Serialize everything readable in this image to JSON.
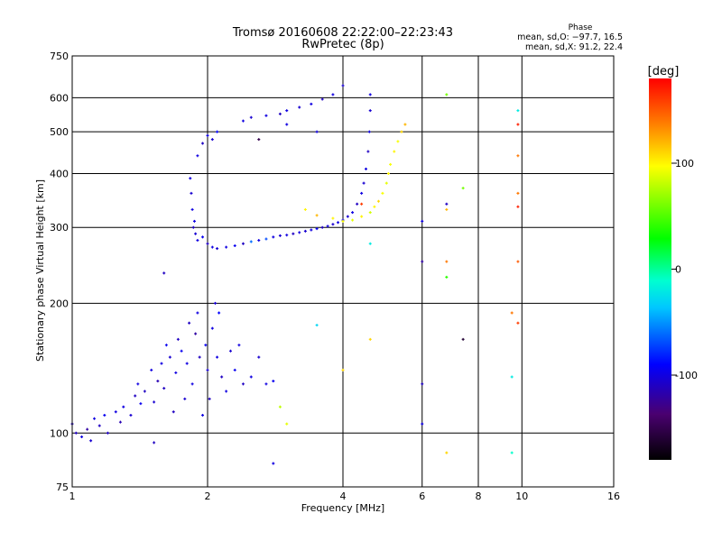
{
  "chart_data": {
    "type": "scatter",
    "title": "Tromsø 20160608 22:22:00–22:23:43",
    "subtitle": "RwPretec (8p)",
    "xlabel": "Frequency [MHz]",
    "ylabel": "Stationary phase Virtual Height [km]",
    "xscale": "log",
    "yscale": "log",
    "xlim": [
      1,
      16
    ],
    "ylim": [
      75,
      750
    ],
    "xticks": [
      1,
      2,
      4,
      6,
      8,
      10,
      16
    ],
    "yticks": [
      75,
      100,
      200,
      300,
      400,
      500,
      600,
      750
    ],
    "xgrid": [
      2,
      4,
      6,
      8,
      10
    ],
    "ygrid": [
      100,
      200,
      300,
      400,
      500,
      600
    ],
    "colorbar": {
      "label": "[deg]",
      "range": [
        -180,
        180
      ],
      "ticks": [
        100,
        0,
        -100
      ]
    },
    "stats": {
      "title": "Phase",
      "o_line": "mean, sd,O:  −97.7, 16.5",
      "x_line": "mean, sd,X:  91.2, 22.4"
    },
    "points": [
      [
        1.0,
        105,
        -110
      ],
      [
        1.02,
        100,
        -110
      ],
      [
        1.05,
        98,
        -100
      ],
      [
        1.08,
        102,
        -120
      ],
      [
        1.1,
        96,
        -105
      ],
      [
        1.12,
        108,
        -100
      ],
      [
        1.15,
        104,
        -110
      ],
      [
        1.18,
        110,
        -95
      ],
      [
        1.2,
        100,
        -110
      ],
      [
        1.25,
        112,
        -100
      ],
      [
        1.28,
        106,
        -115
      ],
      [
        1.3,
        115,
        -100
      ],
      [
        1.35,
        110,
        -105
      ],
      [
        1.38,
        122,
        -110
      ],
      [
        1.4,
        130,
        -100
      ],
      [
        1.42,
        117,
        -95
      ],
      [
        1.45,
        125,
        -110
      ],
      [
        1.5,
        140,
        -100
      ],
      [
        1.52,
        118,
        -105
      ],
      [
        1.55,
        132,
        -115
      ],
      [
        1.58,
        145,
        -100
      ],
      [
        1.6,
        127,
        -110
      ],
      [
        1.62,
        160,
        -95
      ],
      [
        1.65,
        150,
        -105
      ],
      [
        1.68,
        112,
        -110
      ],
      [
        1.7,
        138,
        -100
      ],
      [
        1.72,
        165,
        -110
      ],
      [
        1.75,
        155,
        -95
      ],
      [
        1.78,
        120,
        -105
      ],
      [
        1.8,
        145,
        -100
      ],
      [
        1.82,
        180,
        -110
      ],
      [
        1.85,
        130,
        -100
      ],
      [
        1.88,
        170,
        -120
      ],
      [
        1.9,
        190,
        -100
      ],
      [
        1.92,
        150,
        -110
      ],
      [
        1.95,
        110,
        -100
      ],
      [
        1.98,
        160,
        -95
      ],
      [
        2.0,
        140,
        -105
      ],
      [
        2.02,
        120,
        -110
      ],
      [
        2.05,
        175,
        -100
      ],
      [
        2.08,
        200,
        -105
      ],
      [
        2.1,
        150,
        -100
      ],
      [
        2.12,
        190,
        -90
      ],
      [
        2.15,
        135,
        -110
      ],
      [
        2.2,
        125,
        -100
      ],
      [
        2.25,
        155,
        -105
      ],
      [
        2.3,
        140,
        -95
      ],
      [
        2.35,
        160,
        -100
      ],
      [
        2.4,
        130,
        -110
      ],
      [
        2.5,
        135,
        -100
      ],
      [
        2.6,
        150,
        -105
      ],
      [
        2.7,
        130,
        -100
      ],
      [
        2.8,
        132,
        -95
      ],
      [
        1.52,
        95,
        -110
      ],
      [
        1.6,
        235,
        -110
      ],
      [
        2.8,
        85,
        -100
      ],
      [
        2.9,
        115,
        80
      ],
      [
        3.0,
        105,
        90
      ],
      [
        1.83,
        390,
        -100
      ],
      [
        1.84,
        360,
        -105
      ],
      [
        1.85,
        330,
        -100
      ],
      [
        1.86,
        300,
        -110
      ],
      [
        1.87,
        310,
        -100
      ],
      [
        1.88,
        290,
        -105
      ],
      [
        1.9,
        280,
        -100
      ],
      [
        1.95,
        285,
        -95
      ],
      [
        2.0,
        275,
        -110
      ],
      [
        2.05,
        270,
        -100
      ],
      [
        2.1,
        268,
        -105
      ],
      [
        2.2,
        270,
        -100
      ],
      [
        2.3,
        272,
        -95
      ],
      [
        2.4,
        275,
        -110
      ],
      [
        2.5,
        278,
        -60
      ],
      [
        2.6,
        280,
        -100
      ],
      [
        2.7,
        282,
        -70
      ],
      [
        2.8,
        285,
        -100
      ],
      [
        2.9,
        287,
        -105
      ],
      [
        3.0,
        288,
        -100
      ],
      [
        3.1,
        290,
        -110
      ],
      [
        3.2,
        292,
        -100
      ],
      [
        3.3,
        294,
        -105
      ],
      [
        3.4,
        296,
        -100
      ],
      [
        3.5,
        298,
        -95
      ],
      [
        3.6,
        300,
        -110
      ],
      [
        3.7,
        302,
        -100
      ],
      [
        3.8,
        305,
        -105
      ],
      [
        3.9,
        308,
        -100
      ],
      [
        4.0,
        312,
        -100
      ],
      [
        4.1,
        318,
        -105
      ],
      [
        4.2,
        325,
        -100
      ],
      [
        4.3,
        340,
        -110
      ],
      [
        4.4,
        360,
        -100
      ],
      [
        4.45,
        380,
        -105
      ],
      [
        4.5,
        410,
        -100
      ],
      [
        4.55,
        450,
        -110
      ],
      [
        4.58,
        500,
        -100
      ],
      [
        4.6,
        560,
        -105
      ],
      [
        4.6,
        610,
        -100
      ],
      [
        3.3,
        330,
        100
      ],
      [
        3.5,
        320,
        120
      ],
      [
        3.8,
        315,
        100
      ],
      [
        4.0,
        310,
        95
      ],
      [
        4.2,
        312,
        90
      ],
      [
        4.4,
        318,
        100
      ],
      [
        4.6,
        325,
        85
      ],
      [
        4.7,
        335,
        100
      ],
      [
        4.8,
        345,
        110
      ],
      [
        4.9,
        360,
        95
      ],
      [
        5.0,
        380,
        90
      ],
      [
        5.05,
        400,
        100
      ],
      [
        5.1,
        420,
        95
      ],
      [
        5.2,
        450,
        100
      ],
      [
        5.3,
        475,
        95
      ],
      [
        5.4,
        500,
        110
      ],
      [
        5.5,
        520,
        120
      ],
      [
        4.4,
        340,
        160
      ],
      [
        1.9,
        440,
        -100
      ],
      [
        1.95,
        470,
        -110
      ],
      [
        2.0,
        490,
        -100
      ],
      [
        2.05,
        480,
        -105
      ],
      [
        2.1,
        500,
        -90
      ],
      [
        2.4,
        530,
        -100
      ],
      [
        2.5,
        540,
        -105
      ],
      [
        2.7,
        545,
        -100
      ],
      [
        2.9,
        550,
        -110
      ],
      [
        3.0,
        560,
        -100
      ],
      [
        3.2,
        570,
        -105
      ],
      [
        3.4,
        580,
        -100
      ],
      [
        3.6,
        595,
        -110
      ],
      [
        3.8,
        610,
        -100
      ],
      [
        4.0,
        640,
        -105
      ],
      [
        2.6,
        480,
        -150
      ],
      [
        3.0,
        520,
        -100
      ],
      [
        3.5,
        500,
        -100
      ],
      [
        6.0,
        310,
        -100
      ],
      [
        6.0,
        250,
        -120
      ],
      [
        6.0,
        130,
        -110
      ],
      [
        6.0,
        105,
        -100
      ],
      [
        6.8,
        340,
        -110
      ],
      [
        6.8,
        330,
        120
      ],
      [
        6.8,
        250,
        140
      ],
      [
        6.8,
        230,
        40
      ],
      [
        6.8,
        610,
        60
      ],
      [
        6.8,
        90,
        110
      ],
      [
        7.4,
        370,
        60
      ],
      [
        7.4,
        165,
        -160
      ],
      [
        9.5,
        90,
        -10
      ],
      [
        9.5,
        135,
        -20
      ],
      [
        9.5,
        190,
        140
      ],
      [
        9.8,
        560,
        -20
      ],
      [
        9.8,
        520,
        170
      ],
      [
        9.8,
        440,
        140
      ],
      [
        9.8,
        360,
        140
      ],
      [
        9.8,
        335,
        170
      ],
      [
        9.8,
        250,
        150
      ],
      [
        9.8,
        180,
        160
      ],
      [
        4.6,
        275,
        -20
      ],
      [
        4.6,
        165,
        110
      ],
      [
        4.0,
        140,
        110
      ],
      [
        3.5,
        178,
        -30
      ]
    ]
  }
}
